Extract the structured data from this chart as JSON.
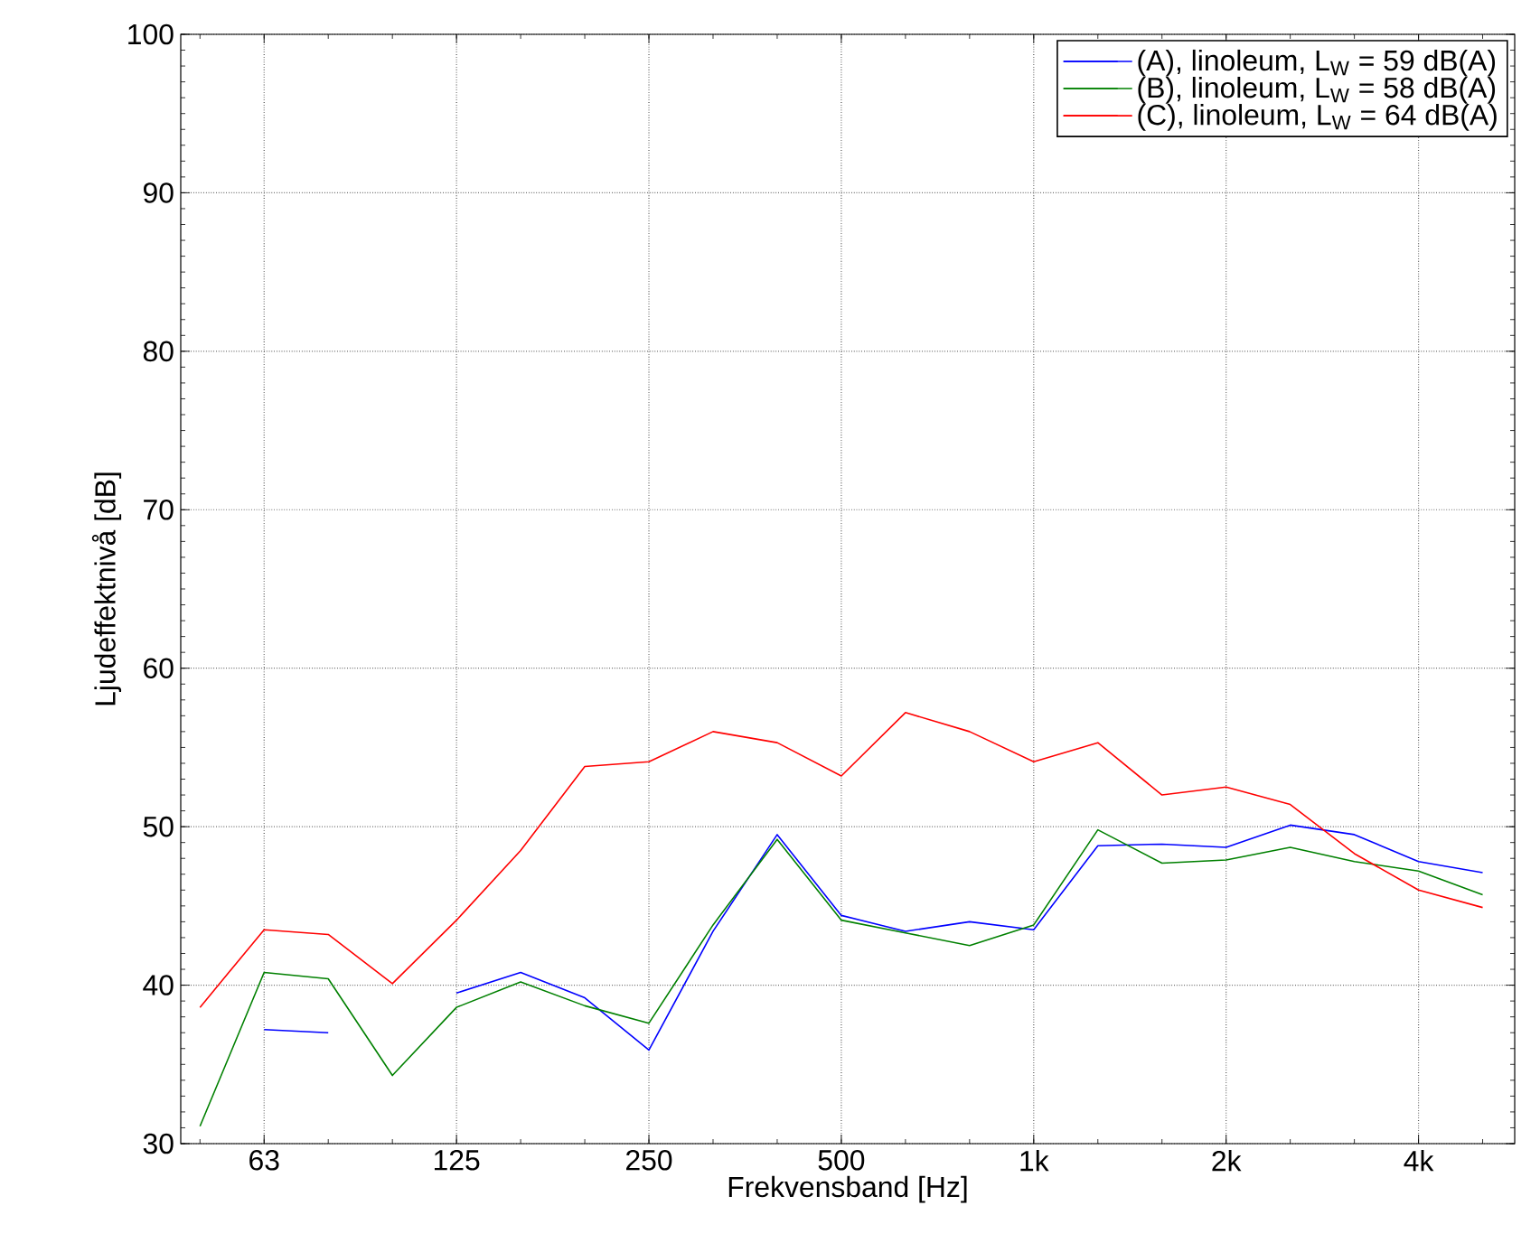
{
  "chart_data": {
    "type": "line",
    "xlabel": "Frekvensband [Hz]",
    "ylabel": "Ljudeffektnivå [dB]",
    "categories": [
      null,
      "63",
      null,
      null,
      "125",
      null,
      null,
      "250",
      null,
      null,
      "500",
      null,
      null,
      "1k",
      null,
      null,
      "2k",
      null,
      null,
      "4k",
      null
    ],
    "series": [
      {
        "name": "(A), linoleum, L$_{W}$ = 59 dB(A)",
        "color": "#0000ff",
        "values": [
          null,
          37.2,
          37.0,
          null,
          39.5,
          40.8,
          39.2,
          35.9,
          43.4,
          49.5,
          44.4,
          43.4,
          44.0,
          43.5,
          48.8,
          48.9,
          48.7,
          50.1,
          49.5,
          47.8,
          47.1
        ]
      },
      {
        "name": "(B), linoleum, L$_{W}$ = 58 dB(A)",
        "color": "#008000",
        "values": [
          31.1,
          40.8,
          40.4,
          34.3,
          38.6,
          40.2,
          38.7,
          37.6,
          43.8,
          49.2,
          44.1,
          43.3,
          42.5,
          43.8,
          49.8,
          47.7,
          47.9,
          48.7,
          47.8,
          47.2,
          45.7
        ]
      },
      {
        "name": "(C), linoleum, L$_{W}$ = 64 dB(A)",
        "color": "#ff0000",
        "values": [
          38.6,
          43.5,
          43.2,
          40.1,
          44.1,
          48.5,
          53.8,
          54.1,
          56.0,
          55.3,
          53.2,
          57.2,
          56.0,
          54.1,
          55.3,
          52.0,
          52.5,
          51.4,
          48.3,
          46.0,
          44.9
        ]
      }
    ],
    "ylim": [
      30,
      100
    ],
    "yticks": [
      30,
      40,
      50,
      60,
      70,
      80,
      90,
      100
    ],
    "grid": true,
    "legend": "top right",
    "line_style": "solid",
    "marker": "none"
  }
}
